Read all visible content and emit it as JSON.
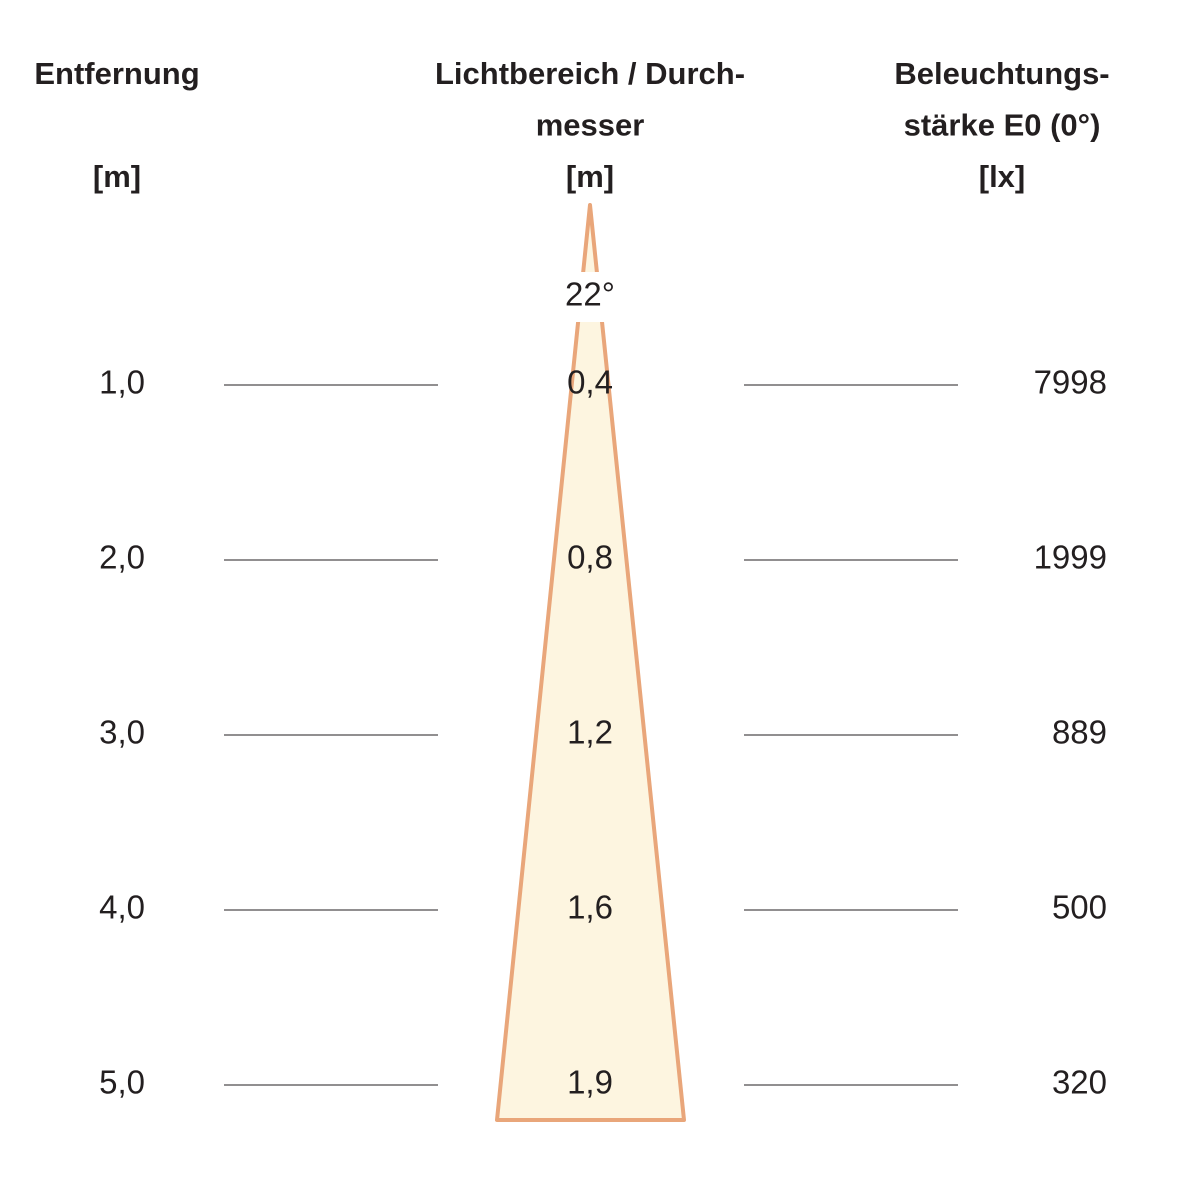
{
  "headers": {
    "distance": [
      "Entfernung",
      "[m]"
    ],
    "diameter": [
      "Lichtbereich / Durch-",
      "messer",
      "[m]"
    ],
    "illuminance": [
      "Beleuchtungs-",
      "stärke E0 (0°)",
      "[lx]"
    ]
  },
  "beam_angle": "22°",
  "rows": [
    {
      "distance": "1,0",
      "diameter": "0,4",
      "illuminance": "7998"
    },
    {
      "distance": "2,0",
      "diameter": "0,8",
      "illuminance": "1999"
    },
    {
      "distance": "3,0",
      "diameter": "1,2",
      "illuminance": "889"
    },
    {
      "distance": "4,0",
      "diameter": "1,6",
      "illuminance": "500"
    },
    {
      "distance": "5,0",
      "diameter": "1,9",
      "illuminance": "320"
    }
  ]
}
